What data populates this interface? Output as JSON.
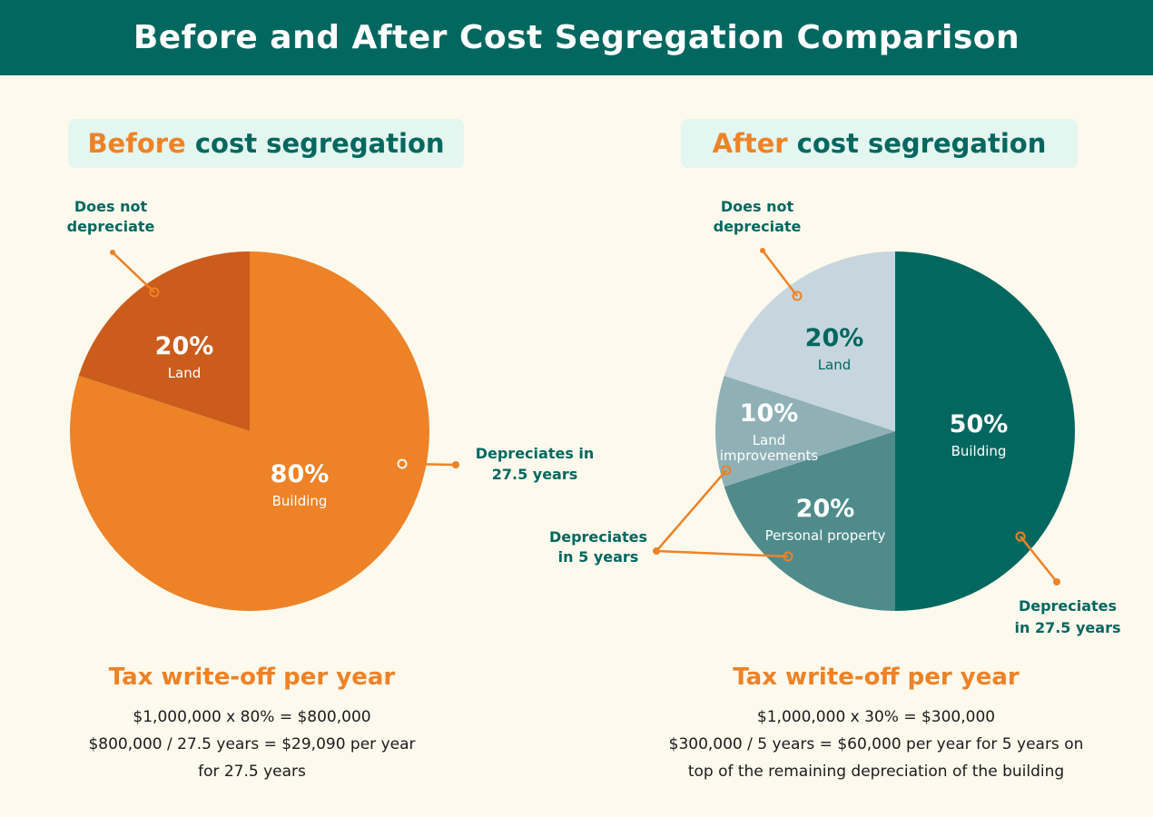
{
  "title": "Before and After Cost Segregation Comparison",
  "colors": {
    "header_bg": "#02675f",
    "background": "#fdf9ed",
    "orange": "#ee8226",
    "orange_dark": "#cb5c1b",
    "teal": "#02675f",
    "teal_mid": "#4f8b8b",
    "teal_light": "#8fb1b6",
    "gray_blue": "#c7d6de"
  },
  "before": {
    "heading_accent": "Before",
    "heading_rest": "cost segregation",
    "callout_land_line1": "Does not",
    "callout_land_line2": "depreciate",
    "callout_building_line1": "Depreciates in",
    "callout_building_line2": "27.5 years",
    "summary_title": "Tax write-off per year",
    "summary_line1": "$1,000,000 x 80% = $800,000",
    "summary_line2": "$800,000 / 27.5 years = $29,090 per year",
    "summary_line3": "for 27.5 years"
  },
  "after": {
    "heading_accent": "After",
    "heading_rest": "cost segregation",
    "callout_land_line1": "Does not",
    "callout_land_line2": "depreciate",
    "callout_5yr_line1": "Depreciates",
    "callout_5yr_line2": "in 5 years",
    "callout_building_line1": "Depreciates",
    "callout_building_line2": "in 27.5 years",
    "summary_title": "Tax write-off per year",
    "summary_line1": "$1,000,000 x 30% = $300,000",
    "summary_line2": "$300,000 / 5 years = $60,000 per year for 5 years on",
    "summary_line3": "top of the remaining depreciation of the building"
  },
  "chart_data": [
    {
      "type": "pie",
      "title": "Before cost segregation",
      "slices": [
        {
          "label": "Land",
          "value": 20,
          "value_label": "20%",
          "color": "#cb5c1b"
        },
        {
          "label": "Building",
          "value": 80,
          "value_label": "80%",
          "color": "#ee8226"
        }
      ]
    },
    {
      "type": "pie",
      "title": "After cost segregation",
      "slices": [
        {
          "label": "Building",
          "value": 50,
          "value_label": "50%",
          "color": "#02675f"
        },
        {
          "label": "Personal property",
          "value": 20,
          "value_label": "20%",
          "color": "#4f8b8b"
        },
        {
          "label": "Land improvements",
          "value": 10,
          "value_label": "10%",
          "label_lines": [
            "Land",
            "improvements"
          ],
          "color": "#8fb1b6"
        },
        {
          "label": "Land",
          "value": 20,
          "value_label": "20%",
          "color": "#c7d6de"
        }
      ]
    }
  ]
}
